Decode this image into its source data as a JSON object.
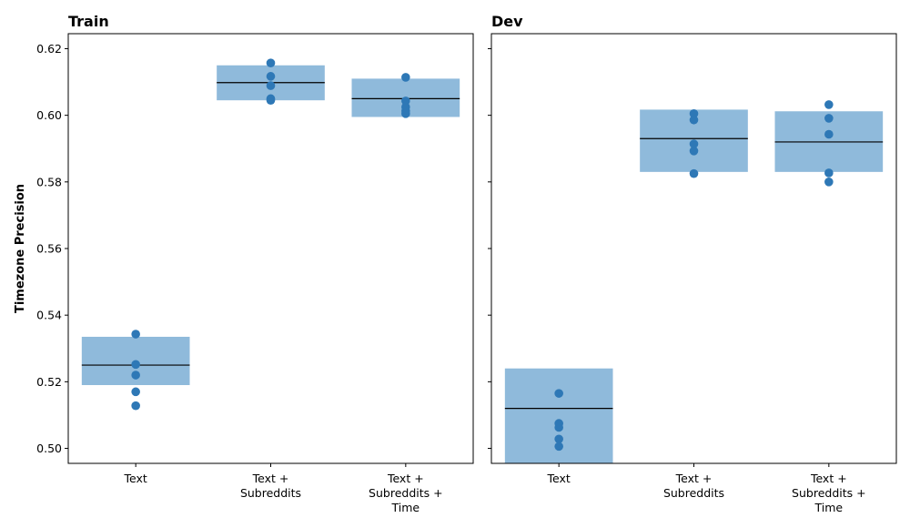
{
  "chart_data": {
    "type": "scatter",
    "ylabel": "Timezone Precision",
    "ylim": [
      0.4955,
      0.6245
    ],
    "yticks": [
      0.5,
      0.52,
      0.54,
      0.56,
      0.58,
      0.6,
      0.62
    ],
    "ytick_labels": [
      "0.50",
      "0.52",
      "0.54",
      "0.56",
      "0.58",
      "0.60",
      "0.62"
    ],
    "categories": [
      [
        "Text"
      ],
      [
        "Text +",
        "Subreddits"
      ],
      [
        "Text +",
        "Subreddits +",
        "Time"
      ]
    ],
    "colors": {
      "box": "#8fbadb",
      "point": "#2e78b6",
      "median": "#000000"
    },
    "panels": [
      {
        "title": "Train",
        "groups": [
          {
            "low": 0.519,
            "high": 0.5335,
            "median": 0.525,
            "points": [
              0.5343,
              0.5252,
              0.522,
              0.517,
              0.5128
            ]
          },
          {
            "low": 0.6045,
            "high": 0.615,
            "median": 0.6098,
            "points": [
              0.6157,
              0.6117,
              0.6089,
              0.605,
              0.6045
            ]
          },
          {
            "low": 0.5995,
            "high": 0.611,
            "median": 0.605,
            "points": [
              0.6114,
              0.6043,
              0.6025,
              0.6013,
              0.6005
            ]
          }
        ]
      },
      {
        "title": "Dev",
        "groups": [
          {
            "low": 0.4955,
            "high": 0.524,
            "median": 0.512,
            "points": [
              0.5165,
              0.5075,
              0.5063,
              0.5028,
              0.5006
            ]
          },
          {
            "low": 0.583,
            "high": 0.6017,
            "median": 0.593,
            "points": [
              0.6005,
              0.5986,
              0.5914,
              0.5893,
              0.5825
            ]
          },
          {
            "low": 0.583,
            "high": 0.6012,
            "median": 0.592,
            "points": [
              0.6032,
              0.5991,
              0.5943,
              0.5827,
              0.58
            ]
          }
        ]
      }
    ]
  }
}
